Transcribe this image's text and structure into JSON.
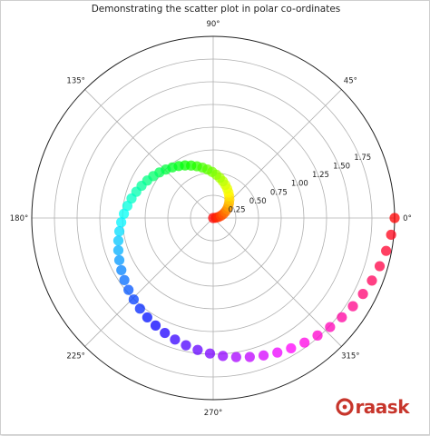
{
  "chart_data": {
    "type": "scatter",
    "projection": "polar",
    "title": "Demonstrating the scatter plot in polar co-ordinates",
    "r_max": 2.0,
    "r_ticks": [
      0.25,
      0.5,
      0.75,
      1.0,
      1.25,
      1.5,
      1.75
    ],
    "r_tick_labels": [
      "0.25",
      "0.50",
      "0.75",
      "1.00",
      "1.25",
      "1.50",
      "1.75"
    ],
    "theta_ticks_deg": [
      0,
      45,
      90,
      135,
      180,
      225,
      270,
      315
    ],
    "theta_tick_labels": [
      "0°",
      "45°",
      "90°",
      "135°",
      "180°",
      "225°",
      "270°",
      "315°"
    ],
    "grid": true,
    "colormap": "hsv",
    "point_count": 68,
    "r_range": [
      0,
      2.0
    ],
    "theta_range_deg": [
      0,
      360
    ],
    "theta_of_r": "theta = 2*pi*r (points evenly spaced in r)",
    "marker_alpha": 0.75,
    "marker": "circle"
  },
  "brand": {
    "logo_text": "raask"
  }
}
